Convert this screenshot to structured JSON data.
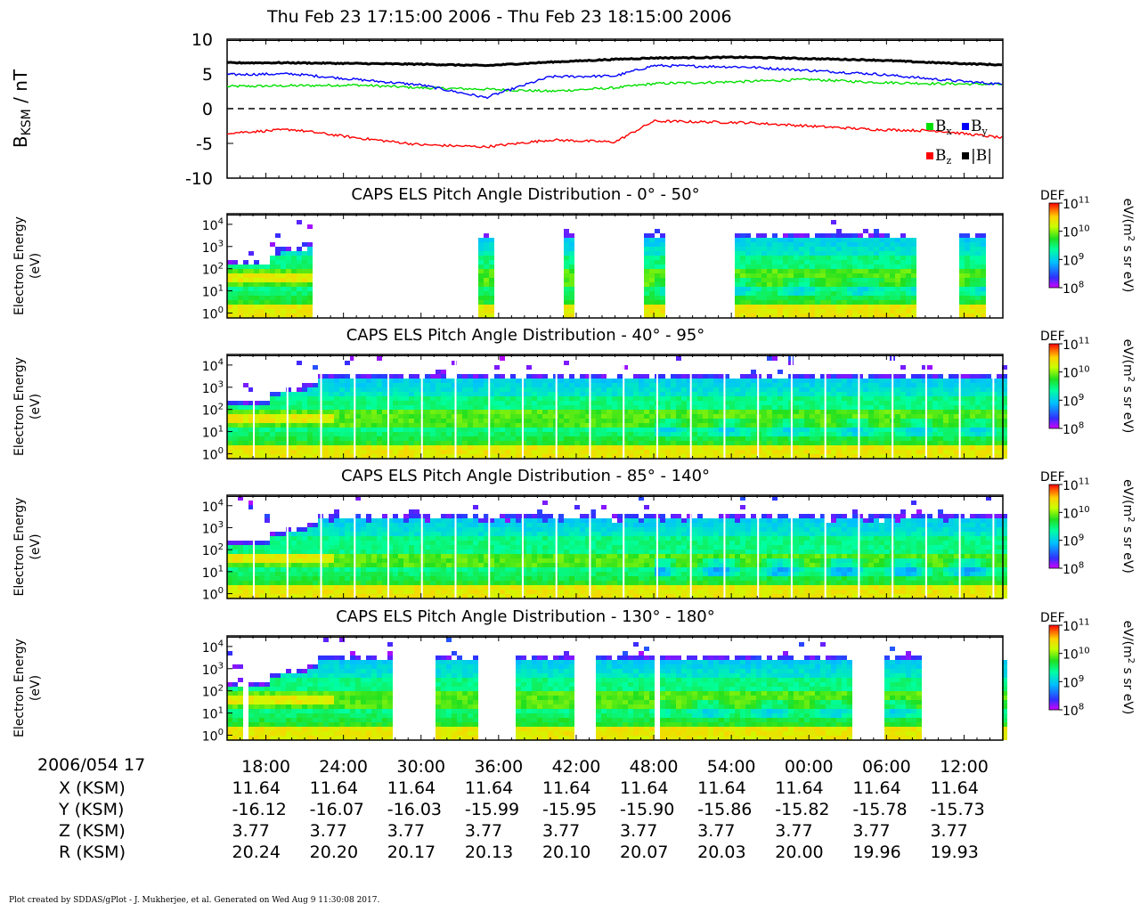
{
  "title": "Thu Feb 23 17:15:00 2006 - Thu Feb 23 18:15:00 2006",
  "footer": "Plot created by SDDAS/gPlot - J. Mukherjee, et al.  Generated on Wed Aug 9 11:30:08 2017.",
  "chart_data": [
    {
      "type": "line",
      "ylabel": "B_KSM / nT",
      "ylim": [
        -10,
        10
      ],
      "yticks": [
        "10",
        "5",
        "0",
        "-5",
        "-10"
      ],
      "grid": false,
      "zero_line": "dashed",
      "legend": {
        "placement": "bottom-right",
        "entries": [
          "Bx",
          "By",
          "Bz",
          "|B|"
        ]
      },
      "x_minutes": [
        15,
        20,
        25,
        30,
        35,
        40,
        45,
        48,
        55,
        60,
        65,
        70,
        75
      ],
      "series": [
        {
          "name": "Bx",
          "color": "#00e000",
          "values": [
            3.2,
            3.3,
            3.4,
            3.0,
            2.8,
            2.5,
            3.0,
            3.6,
            3.9,
            4.2,
            3.8,
            3.6,
            3.5
          ]
        },
        {
          "name": "By",
          "color": "#0000ff",
          "values": [
            4.9,
            5.0,
            4.2,
            3.4,
            1.6,
            4.6,
            4.7,
            6.2,
            6.0,
            5.5,
            5.0,
            4.2,
            3.5
          ]
        },
        {
          "name": "Bz",
          "color": "#ff0000",
          "values": [
            -3.5,
            -3.0,
            -4.2,
            -5.2,
            -5.5,
            -4.5,
            -4.8,
            -1.8,
            -2.0,
            -2.5,
            -3.0,
            -3.2,
            -4.2
          ]
        },
        {
          "name": "|B|",
          "color": "#000000",
          "values": [
            6.6,
            6.6,
            6.5,
            6.4,
            6.2,
            6.7,
            7.1,
            7.3,
            7.4,
            7.2,
            7.0,
            6.6,
            6.3
          ]
        }
      ],
      "legend_labels": {
        "bx": "B",
        "bx_sub": "x",
        "by": "B",
        "by_sub": "y",
        "bz": "B",
        "bz_sub": "z",
        "bmag": "|B|"
      },
      "ylabel_main": "B",
      "ylabel_sub": "KSM",
      "ylabel_rest": " / nT"
    },
    {
      "type": "heatmap",
      "title": "CAPS ELS Pitch Angle Distribution - 0° - 50°",
      "ylabel": "Electron Energy (eV)",
      "yscale": "log",
      "ylim_eV": [
        0.6,
        30000
      ],
      "colorbar": {
        "label": "DEF",
        "units": "eV/(m² s sr eV)",
        "range": [
          100000000.0,
          100000000000.0
        ]
      },
      "data_segments_minutes": [
        [
          15.0,
          18.3
        ],
        [
          18.3,
          21.3
        ],
        [
          34.4,
          35.5
        ],
        [
          40.8,
          41.8
        ],
        [
          47.0,
          48.8
        ],
        [
          54.1,
          68.3
        ],
        [
          71.4,
          73.5
        ]
      ]
    },
    {
      "type": "heatmap",
      "title": "CAPS ELS Pitch Angle Distribution - 40° - 95°",
      "ylabel": "Electron Energy (eV)",
      "yscale": "log",
      "ylim_eV": [
        0.6,
        30000
      ],
      "colorbar": {
        "label": "DEF",
        "units": "eV/(m² s sr eV)",
        "range": [
          100000000.0,
          100000000000.0
        ]
      },
      "data_segments_minutes": [
        [
          15.0,
          75.0
        ]
      ]
    },
    {
      "type": "heatmap",
      "title": "CAPS ELS Pitch Angle Distribution - 85° - 140°",
      "ylabel": "Electron Energy (eV)",
      "yscale": "log",
      "ylim_eV": [
        0.6,
        30000
      ],
      "colorbar": {
        "label": "DEF",
        "units": "eV/(m² s sr eV)",
        "range": [
          100000000.0,
          100000000000.0
        ]
      },
      "data_segments_minutes": [
        [
          15.0,
          75.0
        ]
      ]
    },
    {
      "type": "heatmap",
      "title": "CAPS ELS Pitch Angle Distribution - 130° - 180°",
      "ylabel": "Electron Energy (eV)",
      "yscale": "log",
      "ylim_eV": [
        0.6,
        30000
      ],
      "colorbar": {
        "label": "DEF",
        "units": "eV/(m² s sr eV)",
        "range": [
          100000000.0,
          100000000000.0
        ]
      },
      "data_segments_minutes": [
        [
          15.0,
          16.0
        ],
        [
          16.3,
          27.8
        ],
        [
          31.0,
          34.4
        ],
        [
          37.2,
          41.5
        ],
        [
          43.2,
          47.7
        ],
        [
          48.3,
          63.1
        ],
        [
          65.5,
          68.7
        ],
        [
          74.6,
          75.0
        ]
      ]
    }
  ],
  "time_axis": {
    "range_minutes": [
      15,
      75
    ],
    "tick_minutes": [
      18,
      24,
      30,
      36,
      42,
      48,
      54,
      60,
      66,
      72
    ],
    "ticks": [
      "18:00",
      "24:00",
      "30:00",
      "36:00",
      "42:00",
      "48:00",
      "54:00",
      "00:00",
      "06:00",
      "12:00"
    ],
    "row_header": "2006/054 17"
  },
  "heatmap_axis": {
    "ytick_labels": [
      {
        "base": "10",
        "exp": "4"
      },
      {
        "base": "10",
        "exp": "3"
      },
      {
        "base": "10",
        "exp": "2"
      },
      {
        "base": "10",
        "exp": "1"
      },
      {
        "base": "10",
        "exp": "0"
      }
    ],
    "ylabel_line1": "Electron Energy",
    "ylabel_line2": "(eV)",
    "colorbar_label": "DEF",
    "colorbar_ticks": [
      {
        "base": "10",
        "exp": "11"
      },
      {
        "base": "10",
        "exp": "10"
      },
      {
        "base": "10",
        "exp": "9"
      },
      {
        "base": "10",
        "exp": "8"
      }
    ],
    "colorbar_unit": "eV/(m",
    "colorbar_unit_sup": "2",
    "colorbar_unit_rest": " s sr eV)"
  },
  "ephemeris": {
    "rows": [
      {
        "label": "X (KSM)",
        "values": [
          "11.64",
          "11.64",
          "11.64",
          "11.64",
          "11.64",
          "11.64",
          "11.64",
          "11.64",
          "11.64",
          "11.64"
        ]
      },
      {
        "label": "Y (KSM)",
        "values": [
          "-16.12",
          "-16.07",
          "-16.03",
          "-15.99",
          "-15.95",
          "-15.90",
          "-15.86",
          "-15.82",
          "-15.78",
          "-15.73"
        ]
      },
      {
        "label": "Z (KSM)",
        "values": [
          "3.77",
          "3.77",
          "3.77",
          "3.77",
          "3.77",
          "3.77",
          "3.77",
          "3.77",
          "3.77",
          "3.77"
        ]
      },
      {
        "label": "R (KSM)",
        "values": [
          "20.24",
          "20.20",
          "20.17",
          "20.13",
          "20.10",
          "20.07",
          "20.03",
          "20.00",
          "19.96",
          "19.93"
        ]
      }
    ]
  }
}
